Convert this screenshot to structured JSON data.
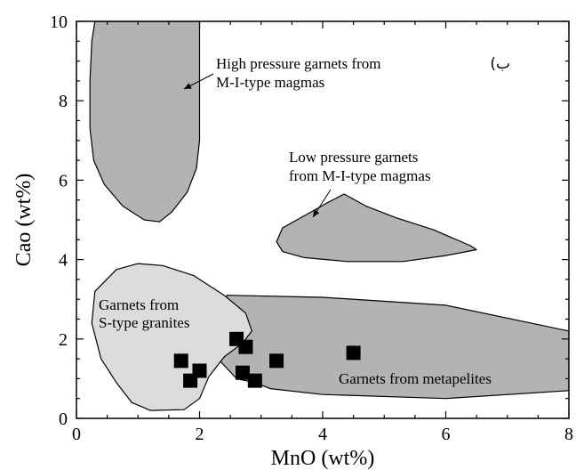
{
  "chart_data": {
    "type": "scatter",
    "title": "",
    "panel_label": "(ب",
    "xlabel": "MnO (wt%)",
    "ylabel": "Cao (wt%)",
    "xlim": [
      0,
      8
    ],
    "ylim": [
      0,
      10
    ],
    "xticks": [
      0,
      2,
      4,
      6,
      8
    ],
    "yticks": [
      0,
      2,
      4,
      6,
      8,
      10
    ],
    "xtick_labels": [
      "0",
      "2",
      "4",
      "6",
      "8"
    ],
    "ytick_labels": [
      "0",
      "2",
      "4",
      "6",
      "8",
      "10"
    ],
    "grid": false,
    "colors": {
      "field_dark": "#b3b3b3",
      "field_light": "#dcdcdc",
      "points": "#000000"
    },
    "regions": [
      {
        "label": "High pressure garnets from M-I-type magmas",
        "label_lines": [
          "High pressure garnets from",
          "M-I-type magmas"
        ],
        "fill": "dark",
        "polygon": [
          [
            0.3,
            10
          ],
          [
            0.25,
            9.5
          ],
          [
            0.22,
            8.5
          ],
          [
            0.22,
            7.3
          ],
          [
            0.28,
            6.5
          ],
          [
            0.45,
            5.9
          ],
          [
            0.75,
            5.35
          ],
          [
            1.1,
            5.0
          ],
          [
            1.35,
            4.95
          ],
          [
            1.55,
            5.2
          ],
          [
            1.8,
            5.7
          ],
          [
            1.95,
            6.3
          ],
          [
            2.0,
            7.0
          ],
          [
            2.0,
            10
          ]
        ]
      },
      {
        "label": "Low pressure garnets from M-I-type magmas",
        "label_lines": [
          "Low pressure garnets",
          "from M-I-type magmas"
        ],
        "fill": "dark",
        "polygon": [
          [
            3.35,
            4.8
          ],
          [
            3.7,
            5.1
          ],
          [
            4.1,
            5.45
          ],
          [
            4.35,
            5.65
          ],
          [
            4.7,
            5.35
          ],
          [
            5.2,
            5.05
          ],
          [
            5.8,
            4.75
          ],
          [
            6.4,
            4.35
          ],
          [
            6.5,
            4.25
          ],
          [
            6.0,
            4.1
          ],
          [
            5.3,
            3.95
          ],
          [
            4.4,
            3.95
          ],
          [
            3.7,
            4.05
          ],
          [
            3.35,
            4.2
          ],
          [
            3.25,
            4.45
          ]
        ]
      },
      {
        "label": "Garnets from metapelites",
        "label_lines": [
          "Garnets from metapelites"
        ],
        "fill": "dark",
        "polygon": [
          [
            2.45,
            3.1
          ],
          [
            4.0,
            3.05
          ],
          [
            6.0,
            2.85
          ],
          [
            8.0,
            2.2
          ],
          [
            8.0,
            0.7
          ],
          [
            6.0,
            0.5
          ],
          [
            4.0,
            0.6
          ],
          [
            3.15,
            0.75
          ],
          [
            2.9,
            0.9
          ],
          [
            2.6,
            1.0
          ],
          [
            2.3,
            1.5
          ],
          [
            2.2,
            2.2
          ],
          [
            2.3,
            2.8
          ]
        ]
      },
      {
        "label": "Garnets from S-type granites",
        "label_lines": [
          "Garnets from",
          "S-type granites"
        ],
        "fill": "light",
        "polygon": [
          [
            0.3,
            3.2
          ],
          [
            0.65,
            3.75
          ],
          [
            1.0,
            3.9
          ],
          [
            1.4,
            3.85
          ],
          [
            1.9,
            3.6
          ],
          [
            2.4,
            3.1
          ],
          [
            2.75,
            2.65
          ],
          [
            2.85,
            2.2
          ],
          [
            2.7,
            1.9
          ],
          [
            2.4,
            1.55
          ],
          [
            2.15,
            1.05
          ],
          [
            2.0,
            0.5
          ],
          [
            1.75,
            0.22
          ],
          [
            1.2,
            0.2
          ],
          [
            0.9,
            0.4
          ],
          [
            0.65,
            0.9
          ],
          [
            0.4,
            1.5
          ],
          [
            0.25,
            2.4
          ]
        ]
      }
    ],
    "series": [
      {
        "marker": "square",
        "points": [
          [
            1.7,
            1.45
          ],
          [
            1.85,
            0.95
          ],
          [
            2.0,
            1.2
          ],
          [
            2.6,
            2.0
          ],
          [
            2.75,
            1.8
          ],
          [
            2.7,
            1.15
          ],
          [
            2.9,
            0.95
          ],
          [
            3.25,
            1.45
          ],
          [
            4.5,
            1.65
          ]
        ]
      }
    ]
  }
}
